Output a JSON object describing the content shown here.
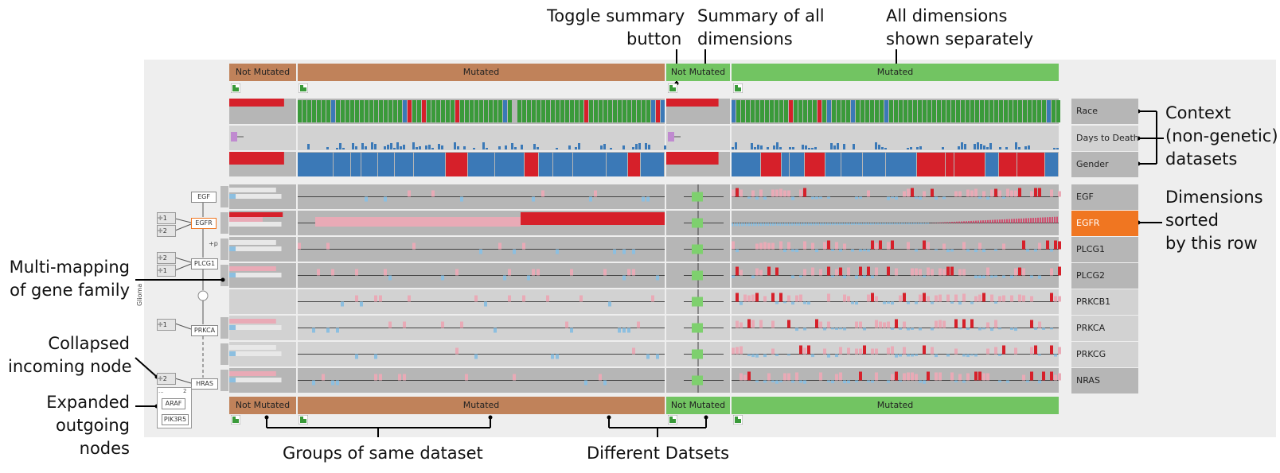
{
  "annotations": {
    "toggle_line1": "Toggle  summary",
    "toggle_line2": "button",
    "summary_line1": "Summary of all",
    "summary_line2": "dimensions",
    "alldims_line1": "All dimensions",
    "alldims_line2": "shown separately",
    "context_line1": "Context",
    "context_line2": "(non-genetic)",
    "context_line3": "datasets",
    "sorted_line1": "Dimensions",
    "sorted_line2": "sorted",
    "sorted_line3": "by this row",
    "multimap_line1": "Multi-mapping",
    "multimap_line2": "of gene family",
    "collapsed_line1": "Collapsed",
    "collapsed_line2": "incoming node",
    "expanded_line1": "Expanded",
    "expanded_line2": "outgoing",
    "expanded_line3": "nodes",
    "groups": "Groups of same dataset",
    "datasets": "Different Datsets"
  },
  "groups": {
    "top": [
      "Not Mutated",
      "Mutated",
      "Not Mutated",
      "Mutated"
    ],
    "bottom": [
      "Not Mutated",
      "Mutated",
      "Not Mutated",
      "Mutated"
    ]
  },
  "context_rows": [
    "Race",
    "Days to Death",
    "Gender"
  ],
  "gene_rows": [
    "EGF",
    "EGFR",
    "PLCG1",
    "PLCG2",
    "PRKCB1",
    "PRKCA",
    "PRKCG",
    "NRAS"
  ],
  "sorted_row": "EGFR",
  "pathway": {
    "nodes": [
      "EGF",
      "EGFR",
      "PLCG1",
      "PRKCA",
      "HRAS",
      "ARAF",
      "PIK3R5"
    ],
    "badges": [
      "1",
      "2",
      "2",
      "1",
      "1",
      "2"
    ],
    "expanded_header": "...",
    "expanded_count": "2",
    "edge_label": "+p",
    "side_label": "Glioma"
  },
  "colors": {
    "orange": "#c0825a",
    "green": "#72c462",
    "race_green": "#3a9a3a",
    "blue": "#3b79b7",
    "red": "#d6202a",
    "pink": "#e9aab6",
    "light_blue": "#8cbfe0",
    "sorted": "#f07621"
  }
}
